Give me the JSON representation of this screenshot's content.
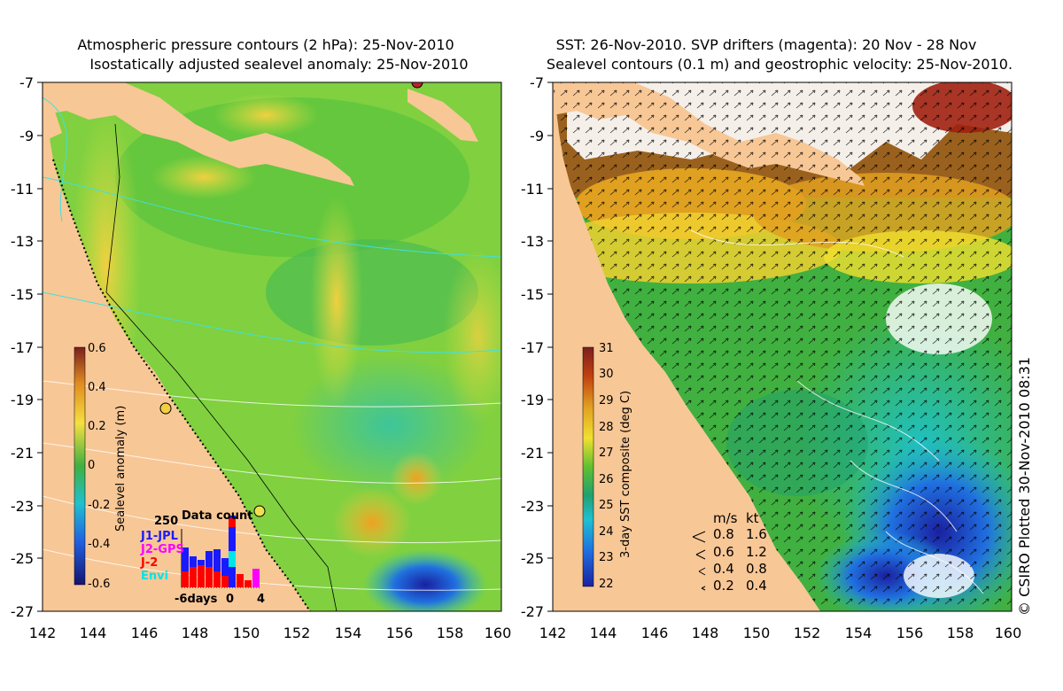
{
  "left": {
    "title_line1": "Atmospheric pressure contours (2 hPa): 25-Nov-2010",
    "title_line2": "Isostatically adjusted sealevel anomaly: 25-Nov-2010",
    "colorbar": {
      "label": "Sealevel anomaly (m)",
      "ticks": [
        "0.6",
        "0.4",
        "0.2",
        "0",
        "-0.2",
        "-0.4",
        "-0.6"
      ]
    },
    "data_count": {
      "title": "Data count",
      "ymax_label": "250",
      "legend": [
        {
          "label": "J1-JPL",
          "color": "#1a1aff"
        },
        {
          "label": "J2-GPS",
          "color": "#ff00ff"
        },
        {
          "label": "J-2",
          "color": "#ff0000"
        },
        {
          "label": "Envi",
          "color": "#00e5e5"
        }
      ],
      "x_labels": [
        "-6days",
        "0",
        "4"
      ]
    }
  },
  "right": {
    "title_line1": "SST: 26-Nov-2010. SVP drifters (magenta): 20 Nov - 28 Nov",
    "title_line2": "Sealevel contours (0.1 m) and geostrophic velocity: 25-Nov-2010.",
    "colorbar": {
      "label": "3-day SST composite (deg C)",
      "ticks": [
        "31",
        "30",
        "29",
        "28",
        "27",
        "26",
        "25",
        "24",
        "23",
        "22"
      ]
    },
    "velocity_legend": {
      "header_ms": "m/s",
      "header_kt": "kt",
      "rows": [
        {
          "ms": "0.8",
          "kt": "1.6"
        },
        {
          "ms": "0.6",
          "kt": "1.2"
        },
        {
          "ms": "0.4",
          "kt": "0.8"
        },
        {
          "ms": "0.2",
          "kt": "0.4"
        }
      ]
    }
  },
  "axes": {
    "y_ticks": [
      "-7",
      "-9",
      "-11",
      "-13",
      "-15",
      "-17",
      "-19",
      "-21",
      "-23",
      "-25",
      "-27"
    ],
    "x_ticks": [
      "142",
      "144",
      "146",
      "148",
      "150",
      "152",
      "154",
      "156",
      "158",
      "160"
    ]
  },
  "copyright": "© CSIRO Plotted 30-Nov-2010 08:31",
  "colors": {
    "land": "#f8c796",
    "sst_ramp": [
      "#7a1f1f",
      "#c04010",
      "#e0a020",
      "#f0e030",
      "#60c030",
      "#20a070",
      "#20c0d0",
      "#2070e0",
      "#1a20a0"
    ],
    "sla_ramp": [
      "#7a1f1f",
      "#e08a20",
      "#f5e040",
      "#80d040",
      "#20b060",
      "#20c0d0",
      "#2060e0",
      "#141470"
    ]
  }
}
